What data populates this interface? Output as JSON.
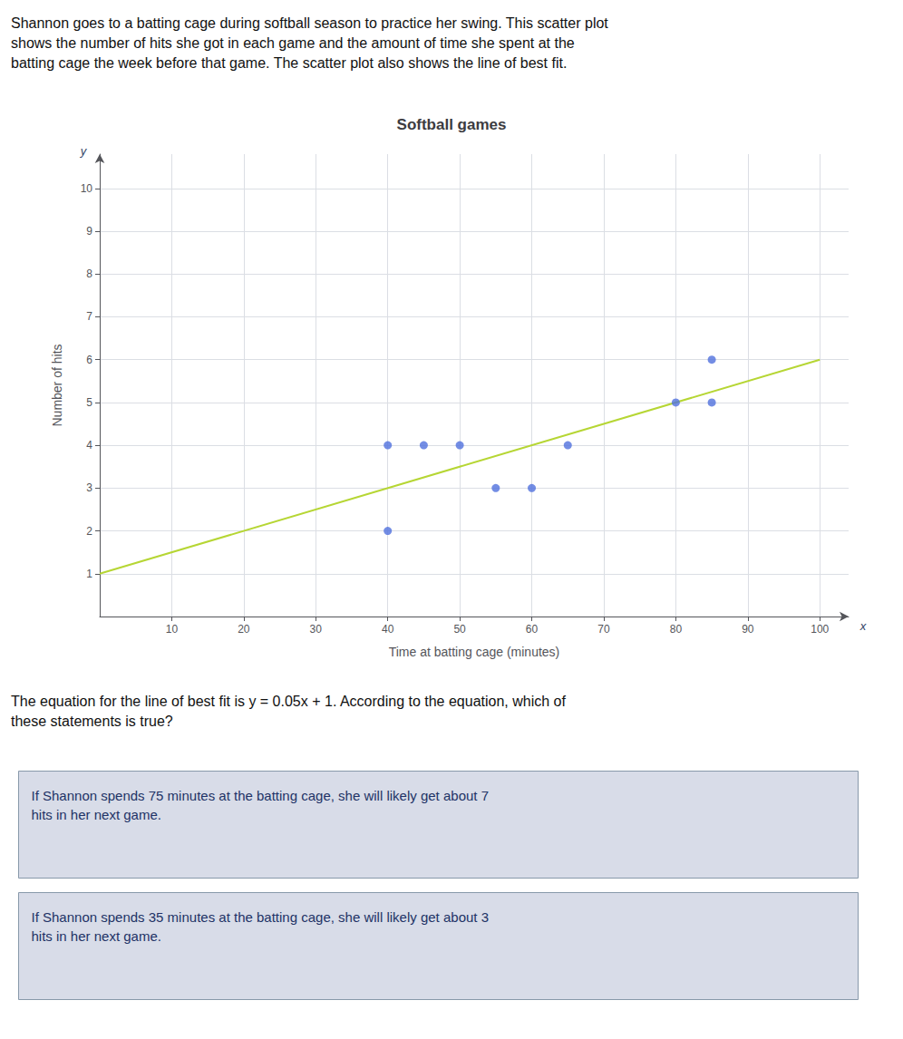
{
  "chart_data": {
    "type": "scatter",
    "title": "Softball games",
    "xlabel": "Time at batting cage (minutes)",
    "ylabel": "Number of hits",
    "series": [
      {
        "type": "scatter",
        "x": [
          40,
          40,
          45,
          50,
          55,
          60,
          65,
          80,
          85,
          85
        ],
        "values": [
          2,
          4,
          4,
          4,
          3,
          3,
          4,
          5,
          5,
          6
        ]
      },
      {
        "type": "line",
        "x": [
          0,
          100
        ],
        "values": [
          1,
          6
        ]
      }
    ],
    "xlim": [
      0,
      104
    ],
    "ylim": [
      0,
      10.8
    ],
    "xticks": [
      10,
      20,
      30,
      40,
      50,
      60,
      70,
      80,
      90,
      100
    ],
    "yticks": [
      1,
      2,
      3,
      4,
      5,
      6,
      7,
      8,
      9,
      10
    ],
    "grid": true,
    "annotations": {
      "description": "Shannon goes to a batting cage during softball season to practice her swing. This scatter plot\nshows the number of hits she got in each game and the amount of time she spent at the\nbatting cage the week before that game. The scatter plot also shows the line of best fit.",
      "question": "The equation for the line of best fit is y = 0.05x + 1. According to the equation, which of\nthese statements is true?",
      "answers": [
        "If Shannon spends 75 minutes at the batting cage, she will likely get about 7\nhits in her next game.",
        "If Shannon spends 35 minutes at the batting cage, she will likely get about 3\nhits in her next game."
      ],
      "x_axis_end": "x",
      "y_axis_end": "y"
    }
  }
}
